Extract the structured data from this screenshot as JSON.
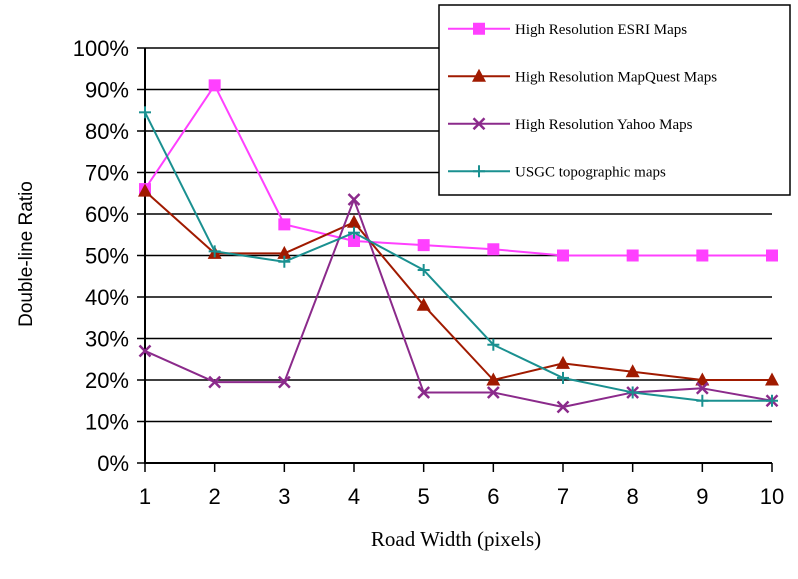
{
  "chart_data": {
    "type": "line",
    "title": "",
    "xlabel": "Road Width (pixels)",
    "ylabel": "Double-line Ratio",
    "x": [
      1,
      2,
      3,
      4,
      5,
      6,
      7,
      8,
      9,
      10
    ],
    "xticks": [
      "1",
      "2",
      "3",
      "4",
      "5",
      "6",
      "7",
      "8",
      "9",
      "10"
    ],
    "ylim": [
      0,
      100
    ],
    "yticks": [
      "0%",
      "10%",
      "20%",
      "30%",
      "40%",
      "50%",
      "60%",
      "70%",
      "80%",
      "90%",
      "100%"
    ],
    "grid": true,
    "legend_position": "top-right",
    "series": [
      {
        "name": "High Resolution ESRI Maps",
        "color": "#ff40ff",
        "marker": "square",
        "values": [
          66,
          91,
          57.5,
          53.5,
          52.5,
          51.5,
          50,
          50,
          50,
          50
        ]
      },
      {
        "name": "High Resolution MapQuest Maps",
        "color": "#a01a00",
        "marker": "triangle",
        "values": [
          65.5,
          50.5,
          50.5,
          58,
          38,
          20,
          24,
          22,
          20,
          20
        ]
      },
      {
        "name": "High Resolution Yahoo Maps",
        "color": "#8b2a8b",
        "marker": "x",
        "values": [
          27,
          19.5,
          19.5,
          63.5,
          17,
          17,
          13.5,
          17,
          18,
          15
        ]
      },
      {
        "name": "USGC topographic maps",
        "color": "#1a9090",
        "marker": "plus",
        "values": [
          84.5,
          51,
          48.5,
          55.5,
          46.5,
          28.5,
          20.5,
          17,
          15,
          15
        ]
      }
    ]
  }
}
